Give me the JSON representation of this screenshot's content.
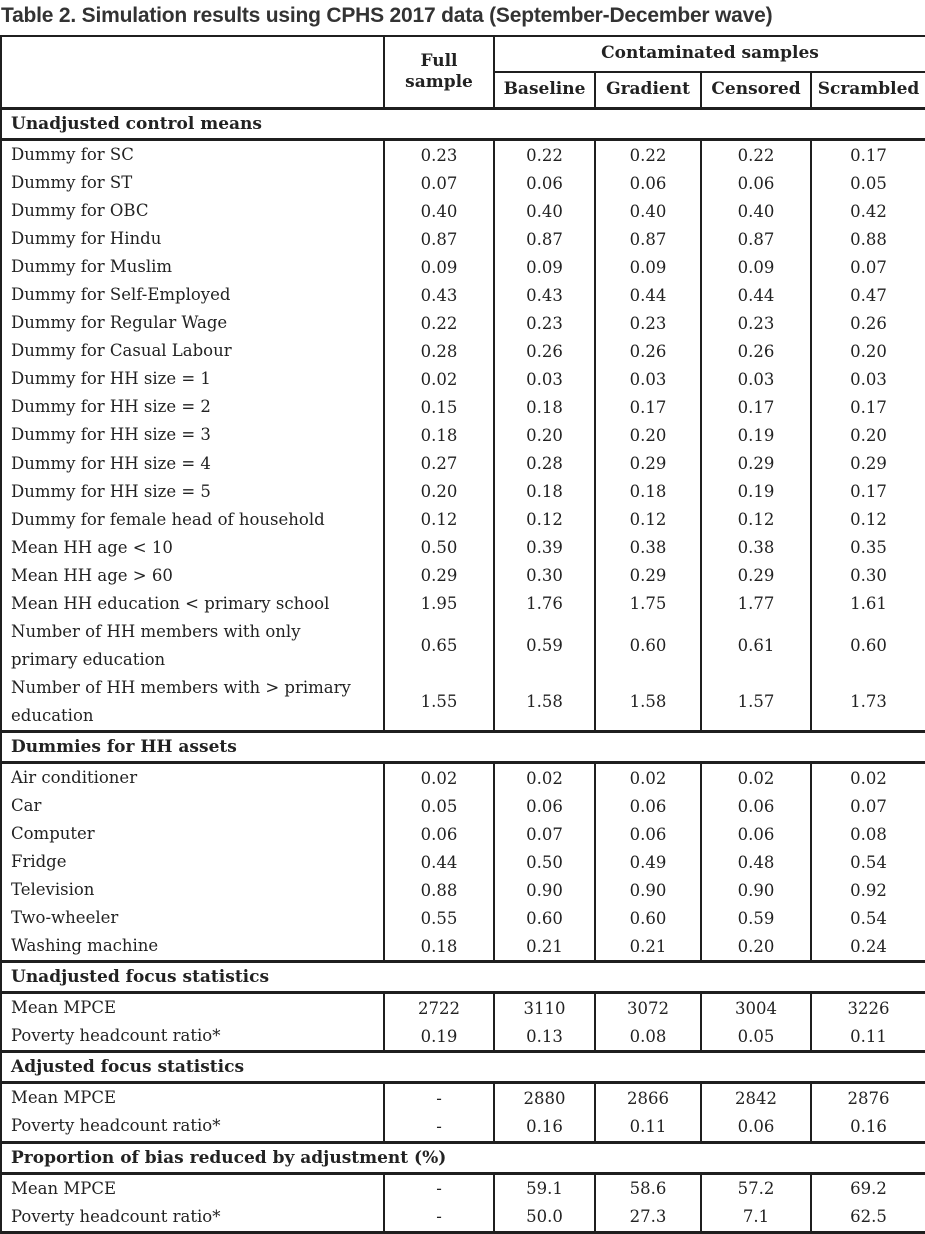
{
  "title": "Table 2. Simulation results using CPHS 2017 data (September-December wave)",
  "table": {
    "col_headers": {
      "corner": "",
      "full_sample": "Full sample",
      "contaminated": "Contaminated samples",
      "sub": [
        "Baseline",
        "Gradient",
        "Censored",
        "Scrambled"
      ]
    },
    "sections": [
      {
        "header": "Unadjusted control means",
        "rows": [
          {
            "label": "Dummy for SC",
            "values": [
              "0.23",
              "0.22",
              "0.22",
              "0.22",
              "0.17"
            ]
          },
          {
            "label": "Dummy for ST",
            "values": [
              "0.07",
              "0.06",
              "0.06",
              "0.06",
              "0.05"
            ]
          },
          {
            "label": "Dummy for OBC",
            "values": [
              "0.40",
              "0.40",
              "0.40",
              "0.40",
              "0.42"
            ]
          },
          {
            "label": "Dummy for Hindu",
            "values": [
              "0.87",
              "0.87",
              "0.87",
              "0.87",
              "0.88"
            ]
          },
          {
            "label": "Dummy for Muslim",
            "values": [
              "0.09",
              "0.09",
              "0.09",
              "0.09",
              "0.07"
            ]
          },
          {
            "label": "Dummy for Self-Employed",
            "values": [
              "0.43",
              "0.43",
              "0.44",
              "0.44",
              "0.47"
            ]
          },
          {
            "label": "Dummy for Regular Wage",
            "values": [
              "0.22",
              "0.23",
              "0.23",
              "0.23",
              "0.26"
            ]
          },
          {
            "label": "Dummy for Casual Labour",
            "values": [
              "0.28",
              "0.26",
              "0.26",
              "0.26",
              "0.20"
            ]
          },
          {
            "label": "Dummy for HH size = 1",
            "values": [
              "0.02",
              "0.03",
              "0.03",
              "0.03",
              "0.03"
            ]
          },
          {
            "label": "Dummy for HH size = 2",
            "values": [
              "0.15",
              "0.18",
              "0.17",
              "0.17",
              "0.17"
            ]
          },
          {
            "label": "Dummy for HH size = 3",
            "values": [
              "0.18",
              "0.20",
              "0.20",
              "0.19",
              "0.20"
            ]
          },
          {
            "label": "Dummy for HH size = 4",
            "values": [
              "0.27",
              "0.28",
              "0.29",
              "0.29",
              "0.29"
            ]
          },
          {
            "label": "Dummy for HH size = 5",
            "values": [
              "0.20",
              "0.18",
              "0.18",
              "0.19",
              "0.17"
            ]
          },
          {
            "label": "Dummy for female head of household",
            "values": [
              "0.12",
              "0.12",
              "0.12",
              "0.12",
              "0.12"
            ]
          },
          {
            "label": "Mean HH age < 10",
            "values": [
              "0.50",
              "0.39",
              "0.38",
              "0.38",
              "0.35"
            ]
          },
          {
            "label": "Mean HH age > 60",
            "values": [
              "0.29",
              "0.30",
              "0.29",
              "0.29",
              "0.30"
            ]
          },
          {
            "label": "Mean HH education < primary school",
            "values": [
              "1.95",
              "1.76",
              "1.75",
              "1.77",
              "1.61"
            ]
          },
          {
            "label": "Number of HH members with only\nprimary education",
            "values": [
              "0.65",
              "0.59",
              "0.60",
              "0.61",
              "0.60"
            ]
          },
          {
            "label": "Number of HH members with > primary\neducation",
            "values": [
              "1.55",
              "1.58",
              "1.58",
              "1.57",
              "1.73"
            ]
          }
        ]
      },
      {
        "header": "Dummies for HH assets",
        "rows": [
          {
            "label": "Air conditioner",
            "values": [
              "0.02",
              "0.02",
              "0.02",
              "0.02",
              "0.02"
            ]
          },
          {
            "label": "Car",
            "values": [
              "0.05",
              "0.06",
              "0.06",
              "0.06",
              "0.07"
            ]
          },
          {
            "label": "Computer",
            "values": [
              "0.06",
              "0.07",
              "0.06",
              "0.06",
              "0.08"
            ]
          },
          {
            "label": "Fridge",
            "values": [
              "0.44",
              "0.50",
              "0.49",
              "0.48",
              "0.54"
            ]
          },
          {
            "label": "Television",
            "values": [
              "0.88",
              "0.90",
              "0.90",
              "0.90",
              "0.92"
            ]
          },
          {
            "label": "Two-wheeler",
            "values": [
              "0.55",
              "0.60",
              "0.60",
              "0.59",
              "0.54"
            ]
          },
          {
            "label": "Washing machine",
            "values": [
              "0.18",
              "0.21",
              "0.21",
              "0.20",
              "0.24"
            ]
          }
        ]
      },
      {
        "header": "Unadjusted focus statistics",
        "rows": [
          {
            "label": "Mean MPCE",
            "values": [
              "2722",
              "3110",
              "3072",
              "3004",
              "3226"
            ]
          },
          {
            "label": "Poverty headcount ratio*",
            "values": [
              "0.19",
              "0.13",
              "0.08",
              "0.05",
              "0.11"
            ]
          }
        ]
      },
      {
        "header": "Adjusted focus statistics",
        "rows": [
          {
            "label": "Mean MPCE",
            "values": [
              "-",
              "2880",
              "2866",
              "2842",
              "2876"
            ]
          },
          {
            "label": "Poverty headcount ratio*",
            "values": [
              "-",
              "0.16",
              "0.11",
              "0.06",
              "0.16"
            ]
          }
        ]
      },
      {
        "header": "Proportion of bias reduced by adjustment (%)",
        "rows": [
          {
            "label": "Mean MPCE",
            "values": [
              "-",
              "59.1",
              "58.6",
              "57.2",
              "69.2"
            ]
          },
          {
            "label": "Poverty headcount ratio*",
            "values": [
              "-",
              "50.0",
              "27.3",
              "7.1",
              "62.5"
            ]
          }
        ]
      }
    ]
  },
  "colors": {
    "border": "#1f1f1f",
    "text": "#222222",
    "title": "#333333",
    "background": "#ffffff"
  }
}
